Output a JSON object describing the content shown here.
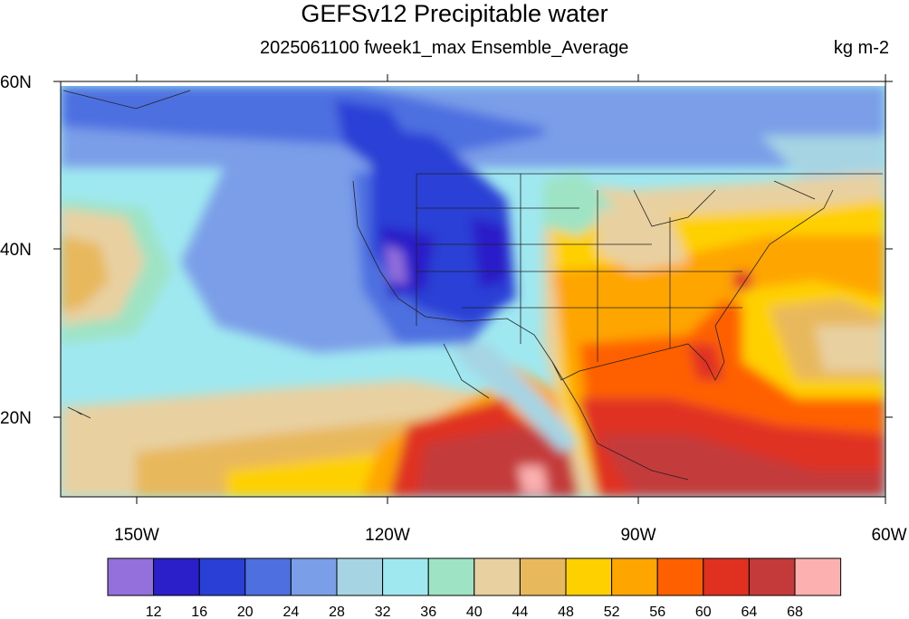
{
  "title": "GEFSv12 Precipitable water",
  "subtitle": "2025061100 fweek1_max Ensemble_Average",
  "units": "kg m-2",
  "map": {
    "lat_labels": [
      "60N",
      "40N",
      "20N"
    ],
    "lon_labels": [
      "150W",
      "120W",
      "90W",
      "60W"
    ]
  },
  "colorbar": {
    "colors": [
      "#9370db",
      "#2a1fc8",
      "#2a3fd6",
      "#4d6fe0",
      "#7b9ee8",
      "#a6d4e3",
      "#9fe8f0",
      "#9ee3c4",
      "#e8d0a0",
      "#e8b85c",
      "#fed000",
      "#fea500",
      "#fe6000",
      "#e03020",
      "#c43a3a",
      "#fdb0b0"
    ],
    "labels": [
      "12",
      "16",
      "20",
      "24",
      "28",
      "32",
      "36",
      "40",
      "44",
      "48",
      "52",
      "56",
      "60",
      "64",
      "68"
    ]
  }
}
